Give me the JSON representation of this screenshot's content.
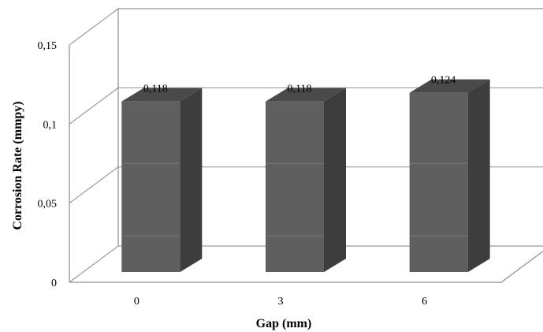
{
  "chart_data": {
    "type": "bar",
    "style": "3d-column",
    "categories": [
      "0",
      "3",
      "6"
    ],
    "values": [
      0.118,
      0.118,
      0.124
    ],
    "data_labels": [
      "0,118",
      "0,118",
      "0,124"
    ],
    "xlabel": "Gap (mm)",
    "ylabel": "Corrosion Rate (mmpy)",
    "ylim": [
      0,
      0.15
    ],
    "yticks": [
      0,
      0.05,
      0.1,
      0.15
    ],
    "ytick_labels": [
      "0",
      "0,05",
      "0,1",
      "0,15"
    ],
    "grid": true,
    "legend": "none"
  },
  "colors": {
    "bar_front": "#5f5f5f",
    "bar_top": "#4a4a4a",
    "bar_side": "#3d3d3d",
    "grid": "#9a9a9a",
    "axis": "#8c8c8c"
  }
}
